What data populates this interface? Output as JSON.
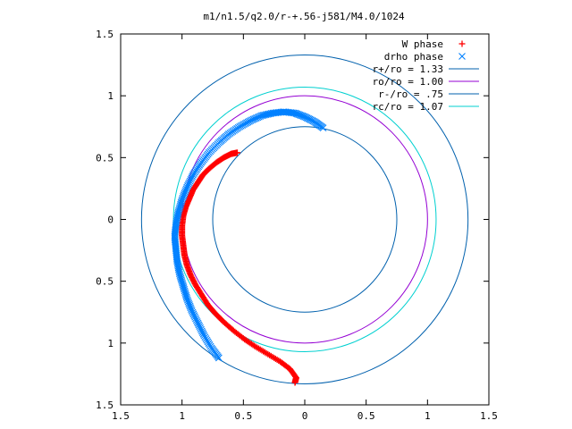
{
  "chart_data": {
    "type": "scatter",
    "title": "m1/n1.5/q2.0/r-+.56-j581/M4.0/1024",
    "xlabel": "",
    "ylabel": "",
    "xlim": [
      -1.5,
      1.5
    ],
    "ylim": [
      -1.5,
      1.5
    ],
    "x_tick_values": [
      -1.5,
      -1,
      -0.5,
      0,
      0.5,
      1,
      1.5
    ],
    "x_tick_labels": [
      "1.5",
      "1",
      "0.5",
      "0",
      "0.5",
      "1",
      "1.5"
    ],
    "y_tick_values": [
      1.5,
      1,
      0.5,
      0,
      -0.5,
      -1,
      -1.5
    ],
    "y_tick_labels": [
      "1.5",
      "1",
      "0.5",
      "0",
      "0.5",
      "1",
      "1.5"
    ],
    "grid": false,
    "legend_position": "top-right",
    "series": [
      {
        "name": "W phase",
        "kind": "points",
        "marker": "+",
        "color": "#ff0000",
        "points": [
          [
            -0.55,
            0.54
          ],
          [
            -0.6,
            0.53
          ],
          [
            -0.66,
            0.5
          ],
          [
            -0.72,
            0.46
          ],
          [
            -0.78,
            0.41
          ],
          [
            -0.83,
            0.36
          ],
          [
            -0.87,
            0.3
          ],
          [
            -0.91,
            0.24
          ],
          [
            -0.94,
            0.17
          ],
          [
            -0.97,
            0.1
          ],
          [
            -0.99,
            0.03
          ],
          [
            -1.0,
            -0.05
          ],
          [
            -1.0,
            -0.13
          ],
          [
            -0.99,
            -0.21
          ],
          [
            -0.98,
            -0.29
          ],
          [
            -0.96,
            -0.37
          ],
          [
            -0.93,
            -0.45
          ],
          [
            -0.89,
            -0.53
          ],
          [
            -0.84,
            -0.61
          ],
          [
            -0.79,
            -0.69
          ],
          [
            -0.73,
            -0.76
          ],
          [
            -0.66,
            -0.83
          ],
          [
            -0.58,
            -0.9
          ],
          [
            -0.49,
            -0.97
          ],
          [
            -0.4,
            -1.03
          ],
          [
            -0.3,
            -1.09
          ],
          [
            -0.2,
            -1.15
          ],
          [
            -0.12,
            -1.21
          ],
          [
            -0.07,
            -1.28
          ],
          [
            -0.08,
            -1.32
          ]
        ]
      },
      {
        "name": "drho phase",
        "kind": "points",
        "marker": "x",
        "color": "#0080ff",
        "points": [
          [
            0.15,
            0.74
          ],
          [
            0.08,
            0.79
          ],
          [
            0.0,
            0.83
          ],
          [
            -0.08,
            0.86
          ],
          [
            -0.17,
            0.87
          ],
          [
            -0.26,
            0.86
          ],
          [
            -0.35,
            0.84
          ],
          [
            -0.44,
            0.8
          ],
          [
            -0.53,
            0.75
          ],
          [
            -0.62,
            0.69
          ],
          [
            -0.7,
            0.62
          ],
          [
            -0.78,
            0.54
          ],
          [
            -0.85,
            0.45
          ],
          [
            -0.91,
            0.36
          ],
          [
            -0.96,
            0.26
          ],
          [
            -1.0,
            0.16
          ],
          [
            -1.03,
            0.06
          ],
          [
            -1.05,
            -0.04
          ],
          [
            -1.06,
            -0.14
          ],
          [
            -1.05,
            -0.24
          ],
          [
            -1.04,
            -0.34
          ],
          [
            -1.02,
            -0.44
          ],
          [
            -0.99,
            -0.54
          ],
          [
            -0.96,
            -0.64
          ],
          [
            -0.92,
            -0.74
          ],
          [
            -0.87,
            -0.84
          ],
          [
            -0.82,
            -0.94
          ],
          [
            -0.76,
            -1.04
          ],
          [
            -0.7,
            -1.12
          ]
        ]
      },
      {
        "name": "r+/ro = 1.33",
        "kind": "circle",
        "radius": 1.33,
        "color": "#0060ad"
      },
      {
        "name": "ro/ro = 1.00",
        "kind": "circle",
        "radius": 1.0,
        "color": "#9400d3"
      },
      {
        "name": "r-/ro = .75",
        "kind": "circle",
        "radius": 0.75,
        "color": "#0060ad"
      },
      {
        "name": "rc/ro = 1.07",
        "kind": "circle",
        "radius": 1.07,
        "color": "#00d0d0"
      }
    ]
  }
}
